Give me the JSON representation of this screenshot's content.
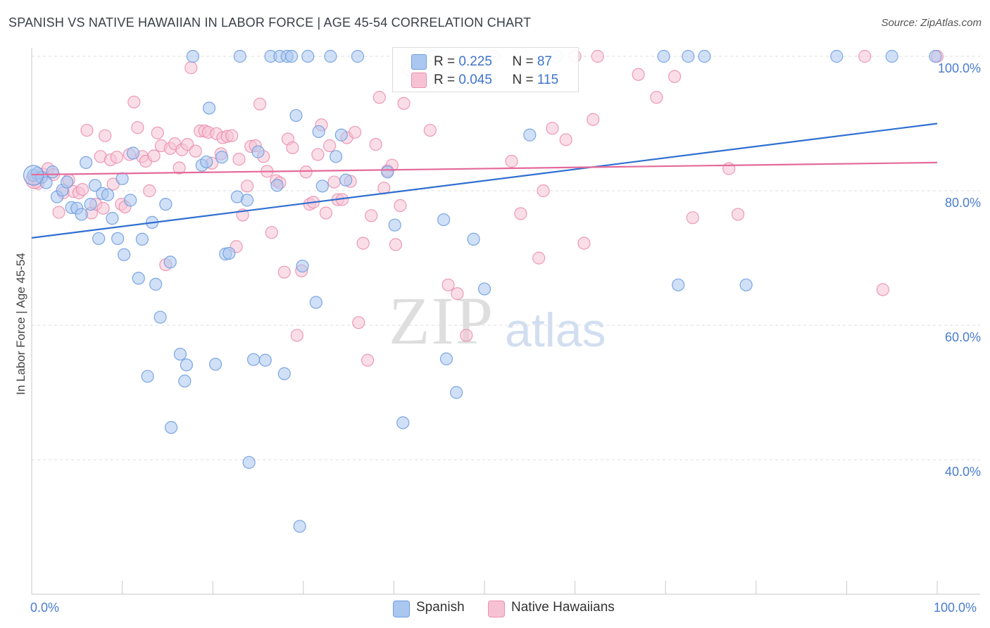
{
  "title": "SPANISH VS NATIVE HAWAIIAN IN LABOR FORCE | AGE 45-54 CORRELATION CHART",
  "source": "Source: ZipAtlas.com",
  "watermark": {
    "zip": "ZIP",
    "atlas": "atlas"
  },
  "legend": {
    "spanish": {
      "r_label": "R = ",
      "r_value": "0.225",
      "n_label": "N = ",
      "n_value": "87"
    },
    "hawaiian": {
      "r_label": "R = ",
      "r_value": "0.045",
      "n_label": "N = ",
      "n_value": "115"
    }
  },
  "colors": {
    "spanish_fill": "#aac7f0",
    "spanish_stroke": "#6f9de0",
    "spanish_line": "#2f6fd0",
    "hawaiian_fill": "#f6c2d3",
    "hawaiian_stroke": "#eb8fb0",
    "hawaiian_line": "#e46a9a"
  },
  "chart_data": {
    "type": "scatter",
    "title": "SPANISH VS NATIVE HAWAIIAN IN LABOR FORCE | AGE 45-54 CORRELATION CHART",
    "xlabel": "",
    "ylabel": "In Labor Force | Age 45-54",
    "xlim": [
      0,
      100
    ],
    "ylim": [
      22,
      103
    ],
    "x_tick_labels": [
      "0.0%",
      "100.0%"
    ],
    "y_tick_labels": [
      "100.0%",
      "80.0%",
      "60.0%",
      "40.0%"
    ],
    "y_ticks": [
      100,
      80,
      60,
      40
    ],
    "grid": true,
    "legend_position": "bottom",
    "series": [
      {
        "name": "Spanish",
        "r": 0.225,
        "n": 87,
        "trend": [
          [
            0,
            73.0
          ],
          [
            100,
            90.0
          ]
        ],
        "points": [
          [
            0.2,
            82.3
          ],
          [
            0.6,
            82.6
          ],
          [
            1.1,
            82.0
          ],
          [
            1.6,
            81.2
          ],
          [
            2.3,
            82.8
          ],
          [
            2.8,
            79.1
          ],
          [
            3.4,
            80.1
          ],
          [
            3.9,
            81.3
          ],
          [
            4.4,
            77.5
          ],
          [
            5.0,
            77.4
          ],
          [
            5.5,
            76.5
          ],
          [
            6.0,
            84.2
          ],
          [
            6.5,
            78.0
          ],
          [
            7.0,
            80.8
          ],
          [
            7.4,
            72.9
          ],
          [
            7.8,
            79.6
          ],
          [
            8.4,
            79.4
          ],
          [
            8.9,
            75.9
          ],
          [
            9.5,
            72.9
          ],
          [
            10.0,
            81.8
          ],
          [
            10.2,
            70.5
          ],
          [
            10.9,
            78.6
          ],
          [
            11.2,
            85.6
          ],
          [
            11.8,
            67.0
          ],
          [
            12.2,
            72.8
          ],
          [
            12.8,
            52.4
          ],
          [
            13.3,
            75.3
          ],
          [
            13.7,
            66.1
          ],
          [
            14.2,
            61.2
          ],
          [
            14.8,
            78.0
          ],
          [
            15.3,
            69.4
          ],
          [
            15.4,
            44.8
          ],
          [
            16.4,
            55.7
          ],
          [
            16.9,
            51.7
          ],
          [
            17.1,
            54.1
          ],
          [
            17.8,
            100.0
          ],
          [
            18.8,
            83.8
          ],
          [
            19.3,
            84.3
          ],
          [
            19.6,
            92.3
          ],
          [
            20.3,
            54.2
          ],
          [
            21.0,
            85.0
          ],
          [
            21.4,
            70.6
          ],
          [
            21.8,
            70.7
          ],
          [
            22.7,
            79.1
          ],
          [
            23.0,
            100.0
          ],
          [
            23.8,
            78.6
          ],
          [
            24.0,
            39.6
          ],
          [
            24.5,
            54.9
          ],
          [
            25.0,
            85.8
          ],
          [
            25.8,
            54.8
          ],
          [
            26.4,
            100.0
          ],
          [
            27.1,
            80.8
          ],
          [
            27.4,
            100.0
          ],
          [
            27.9,
            52.8
          ],
          [
            28.2,
            100.0
          ],
          [
            28.7,
            100.0
          ],
          [
            29.2,
            91.2
          ],
          [
            29.6,
            30.1
          ],
          [
            29.9,
            68.8
          ],
          [
            30.5,
            100.0
          ],
          [
            31.4,
            63.4
          ],
          [
            31.7,
            88.8
          ],
          [
            32.1,
            80.7
          ],
          [
            33.0,
            100.0
          ],
          [
            33.6,
            85.1
          ],
          [
            34.2,
            88.3
          ],
          [
            34.7,
            81.6
          ],
          [
            36.0,
            100.0
          ],
          [
            39.3,
            82.8
          ],
          [
            40.1,
            74.9
          ],
          [
            41.0,
            45.5
          ],
          [
            44.3,
            100.0
          ],
          [
            45.5,
            75.7
          ],
          [
            45.8,
            55.0
          ],
          [
            46.9,
            50.0
          ],
          [
            48.8,
            72.8
          ],
          [
            50.0,
            65.4
          ],
          [
            55.0,
            88.3
          ],
          [
            58.0,
            100.0
          ],
          [
            69.8,
            100.0
          ],
          [
            71.4,
            66.0
          ],
          [
            72.5,
            100.0
          ],
          [
            74.3,
            100.0
          ],
          [
            78.9,
            66.0
          ],
          [
            88.9,
            100.0
          ],
          [
            99.8,
            100.0
          ],
          [
            95.0,
            100.0
          ]
        ]
      },
      {
        "name": "Native Hawaiians",
        "r": 0.045,
        "n": 115,
        "trend": [
          [
            0,
            82.4
          ],
          [
            100,
            84.2
          ]
        ],
        "points": [
          [
            0.3,
            81.6
          ],
          [
            0.7,
            81.1
          ],
          [
            1.2,
            82.5
          ],
          [
            1.8,
            83.3
          ],
          [
            2.4,
            82.4
          ],
          [
            3.0,
            76.8
          ],
          [
            3.5,
            79.7
          ],
          [
            4.1,
            81.6
          ],
          [
            4.6,
            79.9
          ],
          [
            5.2,
            79.7
          ],
          [
            5.6,
            80.2
          ],
          [
            6.1,
            89.0
          ],
          [
            6.6,
            76.7
          ],
          [
            7.1,
            78.0
          ],
          [
            7.6,
            85.1
          ],
          [
            7.9,
            77.4
          ],
          [
            8.1,
            88.2
          ],
          [
            8.7,
            84.6
          ],
          [
            9.0,
            81.0
          ],
          [
            9.4,
            85.0
          ],
          [
            9.9,
            78.0
          ],
          [
            10.3,
            77.6
          ],
          [
            10.8,
            85.4
          ],
          [
            11.3,
            93.2
          ],
          [
            11.7,
            89.4
          ],
          [
            12.2,
            85.1
          ],
          [
            12.6,
            84.4
          ],
          [
            13.0,
            80.0
          ],
          [
            13.5,
            85.2
          ],
          [
            13.9,
            88.6
          ],
          [
            14.3,
            86.7
          ],
          [
            14.8,
            69.0
          ],
          [
            15.3,
            86.3
          ],
          [
            15.8,
            87.0
          ],
          [
            16.3,
            83.4
          ],
          [
            16.6,
            86.1
          ],
          [
            17.2,
            86.9
          ],
          [
            17.6,
            98.3
          ],
          [
            18.1,
            85.9
          ],
          [
            18.6,
            88.9
          ],
          [
            19.1,
            88.9
          ],
          [
            19.5,
            88.7
          ],
          [
            19.9,
            84.1
          ],
          [
            20.4,
            88.5
          ],
          [
            20.9,
            85.5
          ],
          [
            21.1,
            87.9
          ],
          [
            21.6,
            88.1
          ],
          [
            22.1,
            88.2
          ],
          [
            22.6,
            71.7
          ],
          [
            22.9,
            84.7
          ],
          [
            23.3,
            76.4
          ],
          [
            23.8,
            80.7
          ],
          [
            24.2,
            86.6
          ],
          [
            24.7,
            86.7
          ],
          [
            25.2,
            92.9
          ],
          [
            25.6,
            85.1
          ],
          [
            26.0,
            82.9
          ],
          [
            26.5,
            73.8
          ],
          [
            27.0,
            81.5
          ],
          [
            27.4,
            81.2
          ],
          [
            27.9,
            67.9
          ],
          [
            28.3,
            87.7
          ],
          [
            28.8,
            86.4
          ],
          [
            29.3,
            58.5
          ],
          [
            29.8,
            68.1
          ],
          [
            30.3,
            82.8
          ],
          [
            30.7,
            78.0
          ],
          [
            31.1,
            78.3
          ],
          [
            31.6,
            85.4
          ],
          [
            32.0,
            89.8
          ],
          [
            32.5,
            76.7
          ],
          [
            32.9,
            86.7
          ],
          [
            33.4,
            81.3
          ],
          [
            33.8,
            78.7
          ],
          [
            34.3,
            78.7
          ],
          [
            34.8,
            87.9
          ],
          [
            35.2,
            81.4
          ],
          [
            35.7,
            88.7
          ],
          [
            36.1,
            60.4
          ],
          [
            36.6,
            72.2
          ],
          [
            37.1,
            54.8
          ],
          [
            37.5,
            76.3
          ],
          [
            38.0,
            86.9
          ],
          [
            38.4,
            93.9
          ],
          [
            38.9,
            80.4
          ],
          [
            39.3,
            83.0
          ],
          [
            39.8,
            83.8
          ],
          [
            40.2,
            72.0
          ],
          [
            40.7,
            77.8
          ],
          [
            41.1,
            93.0
          ],
          [
            41.6,
            98.0
          ],
          [
            44.0,
            89.0
          ],
          [
            46.0,
            66.0
          ],
          [
            47.0,
            64.7
          ],
          [
            48.0,
            58.5
          ],
          [
            51.0,
            100.0
          ],
          [
            53.0,
            84.4
          ],
          [
            54.0,
            76.6
          ],
          [
            56.0,
            70.0
          ],
          [
            56.5,
            80.0
          ],
          [
            57.5,
            89.3
          ],
          [
            59.0,
            87.6
          ],
          [
            60.0,
            100.0
          ],
          [
            61.0,
            72.2
          ],
          [
            62.0,
            90.6
          ],
          [
            67.0,
            97.3
          ],
          [
            69.0,
            93.9
          ],
          [
            71.0,
            97.0
          ],
          [
            73.0,
            76.0
          ],
          [
            77.0,
            83.3
          ],
          [
            78.0,
            76.5
          ],
          [
            92.0,
            100.0
          ],
          [
            94.0,
            65.3
          ],
          [
            100.0,
            100.0
          ],
          [
            62.5,
            100.0
          ]
        ]
      }
    ]
  },
  "axis": {
    "y_ticks": [
      "100.0%",
      "80.0%",
      "60.0%",
      "40.0%"
    ],
    "x_left": "0.0%",
    "x_right": "100.0%",
    "ylabel": "In Labor Force | Age 45-54"
  },
  "bottom_legend": {
    "spanish": "Spanish",
    "hawaiian": "Native Hawaiians"
  }
}
